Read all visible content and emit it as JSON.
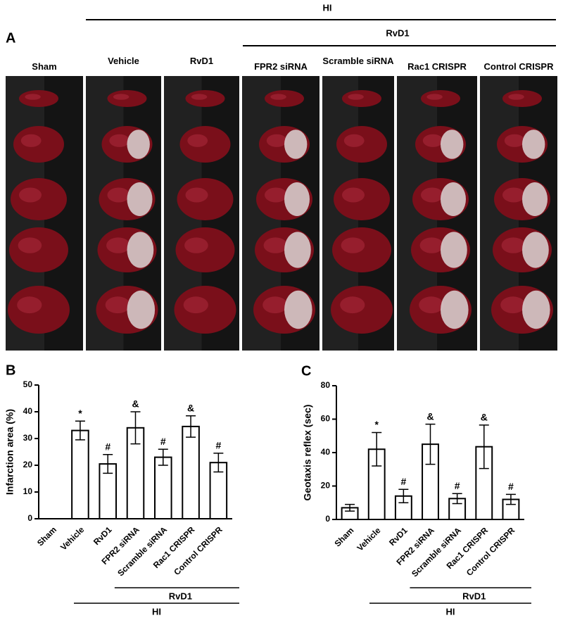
{
  "panel_a": {
    "label": "A",
    "group_top": "HI",
    "group_sub": "RvD1",
    "columns": [
      "Sham",
      "Vehicle",
      "RvD1",
      "FPR2 siRNA",
      "Scramble siRNA",
      "Rac1 CRISPR",
      "Control CRISPR"
    ]
  },
  "chart_data": [
    {
      "type": "bar",
      "panel": "B",
      "y_label": "Infarction area (%)",
      "categories": [
        "Sham",
        "Vehicle",
        "RvD1",
        "FPR2 siRNA",
        "Scramble siRNA",
        "Rac1 CRISPR",
        "Control CRISPR"
      ],
      "values": [
        0,
        33,
        20.5,
        34,
        23,
        34.5,
        21
      ],
      "errors": [
        0,
        3.5,
        3.5,
        6,
        3,
        4,
        3.5
      ],
      "annotations": [
        null,
        "*",
        "#",
        "&",
        "#",
        "&",
        "#"
      ],
      "group_labels": [
        "RvD1",
        "HI"
      ],
      "ylim": [
        0,
        50
      ],
      "yticks": [
        0,
        10,
        20,
        30,
        40,
        50
      ],
      "color": "#ffffff"
    },
    {
      "type": "bar",
      "panel": "C",
      "y_label": "Geotaxis reflex (sec)",
      "categories": [
        "Sham",
        "Vehicle",
        "RvD1",
        "FPR2 siRNA",
        "Scramble siRNA",
        "Rac1 CRISPR",
        "Control CRISPR"
      ],
      "values": [
        7,
        42,
        14,
        45,
        12.5,
        43.5,
        12
      ],
      "errors": [
        2,
        10,
        4,
        12,
        3,
        13,
        3
      ],
      "annotations": [
        null,
        "*",
        "#",
        "&",
        "#",
        "&",
        "#"
      ],
      "group_labels": [
        "RvD1",
        "HI"
      ],
      "ylim": [
        0,
        80
      ],
      "yticks": [
        0,
        20,
        40,
        60,
        80
      ],
      "color": "#ffffff"
    }
  ]
}
